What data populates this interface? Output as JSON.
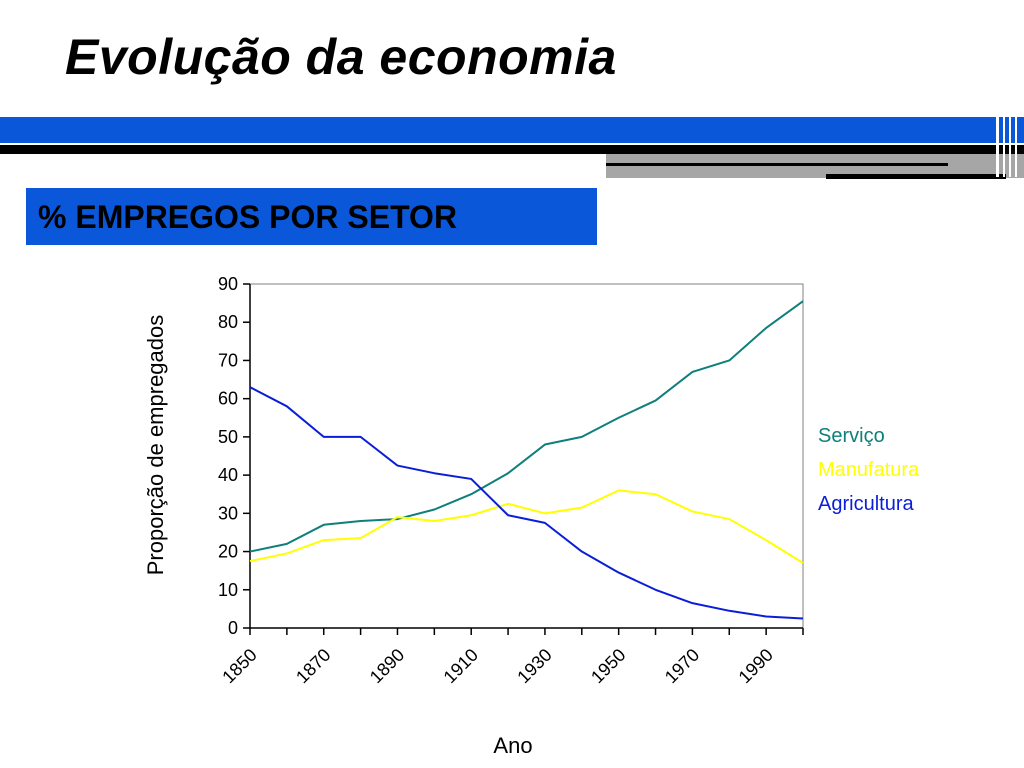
{
  "slide": {
    "title": "Evolução da economia",
    "section_label": "% EMPREGOS POR SETOR"
  },
  "colors": {
    "accent_blue": "#0a57d9",
    "rule_black": "#000000",
    "rule_gray": "#a6a6a6"
  },
  "chart_data": {
    "type": "line",
    "xlabel": "Ano",
    "ylabel": "Proporção de empregados",
    "ylim": [
      0,
      90
    ],
    "yticks": [
      0,
      10,
      20,
      30,
      40,
      50,
      60,
      70,
      80,
      90
    ],
    "xlim": [
      1850,
      2000
    ],
    "xticks": [
      1850,
      1860,
      1870,
      1880,
      1890,
      1900,
      1910,
      1920,
      1930,
      1940,
      1950,
      1960,
      1970,
      1980,
      1990,
      2000
    ],
    "xtick_labels": [
      "1850",
      "1870",
      "1890",
      "1910",
      "1930",
      "1950",
      "1970",
      "1990"
    ],
    "grid": false,
    "legend_position": "right",
    "x": [
      1850,
      1860,
      1870,
      1880,
      1890,
      1900,
      1910,
      1920,
      1930,
      1940,
      1950,
      1960,
      1970,
      1980,
      1990,
      2000
    ],
    "series": [
      {
        "name": "Serviço",
        "color": "#0e7f7a",
        "values": [
          20,
          22,
          27,
          28,
          28.5,
          31,
          35,
          40.5,
          48,
          50,
          55,
          59.5,
          67,
          70,
          78.5,
          85.5
        ]
      },
      {
        "name": "Manufatura",
        "color": "#ffff00",
        "values": [
          17.5,
          19.5,
          23,
          23.5,
          29,
          28,
          29.5,
          32.5,
          30,
          31.5,
          36,
          35,
          30.5,
          28.5,
          23,
          17
        ]
      },
      {
        "name": "Agricultura",
        "color": "#0a1ed9",
        "values": [
          63,
          58,
          50,
          50,
          42.5,
          40.5,
          39,
          29.5,
          27.5,
          20,
          14.5,
          10,
          6.5,
          4.5,
          3,
          2.5
        ]
      }
    ]
  }
}
